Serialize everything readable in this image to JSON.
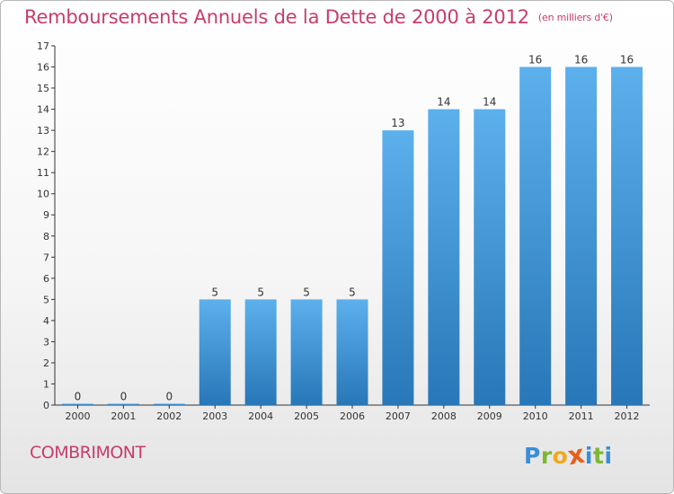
{
  "header": {
    "title": "Remboursements Annuels de la Dette de 2000 à 2012",
    "unit": "(en milliers d'€)"
  },
  "footer": {
    "place": "COMBRIMONT",
    "brand": "Proxiti",
    "brand_letters": [
      "P",
      "r",
      "o",
      "x",
      "i",
      "t",
      "i"
    ],
    "brand_colors": [
      "#3a8ed8",
      "#7cb733",
      "#f0a81c",
      "#e85d1e",
      "#3a8ed8",
      "#7cb733",
      "#3a8ed8"
    ]
  },
  "colors": {
    "bar_top": "#5cb0ec",
    "bar_bottom": "#2877b8",
    "title": "#c83c6e",
    "axis": "#333333"
  },
  "chart_data": {
    "type": "bar",
    "title": "Remboursements Annuels de la Dette de 2000 à 2012",
    "ylabel": "(en milliers d'€)",
    "categories": [
      "2000",
      "2001",
      "2002",
      "2003",
      "2004",
      "2005",
      "2006",
      "2007",
      "2008",
      "2009",
      "2010",
      "2011",
      "2012"
    ],
    "values": [
      0,
      0,
      0,
      5,
      5,
      5,
      5,
      13,
      14,
      14,
      16,
      16,
      16
    ],
    "ylim": [
      0,
      17
    ],
    "yticks": [
      0,
      1,
      2,
      3,
      4,
      5,
      6,
      7,
      8,
      9,
      10,
      11,
      12,
      13,
      14,
      15,
      16,
      17
    ],
    "grid": false,
    "data_labels": true
  }
}
